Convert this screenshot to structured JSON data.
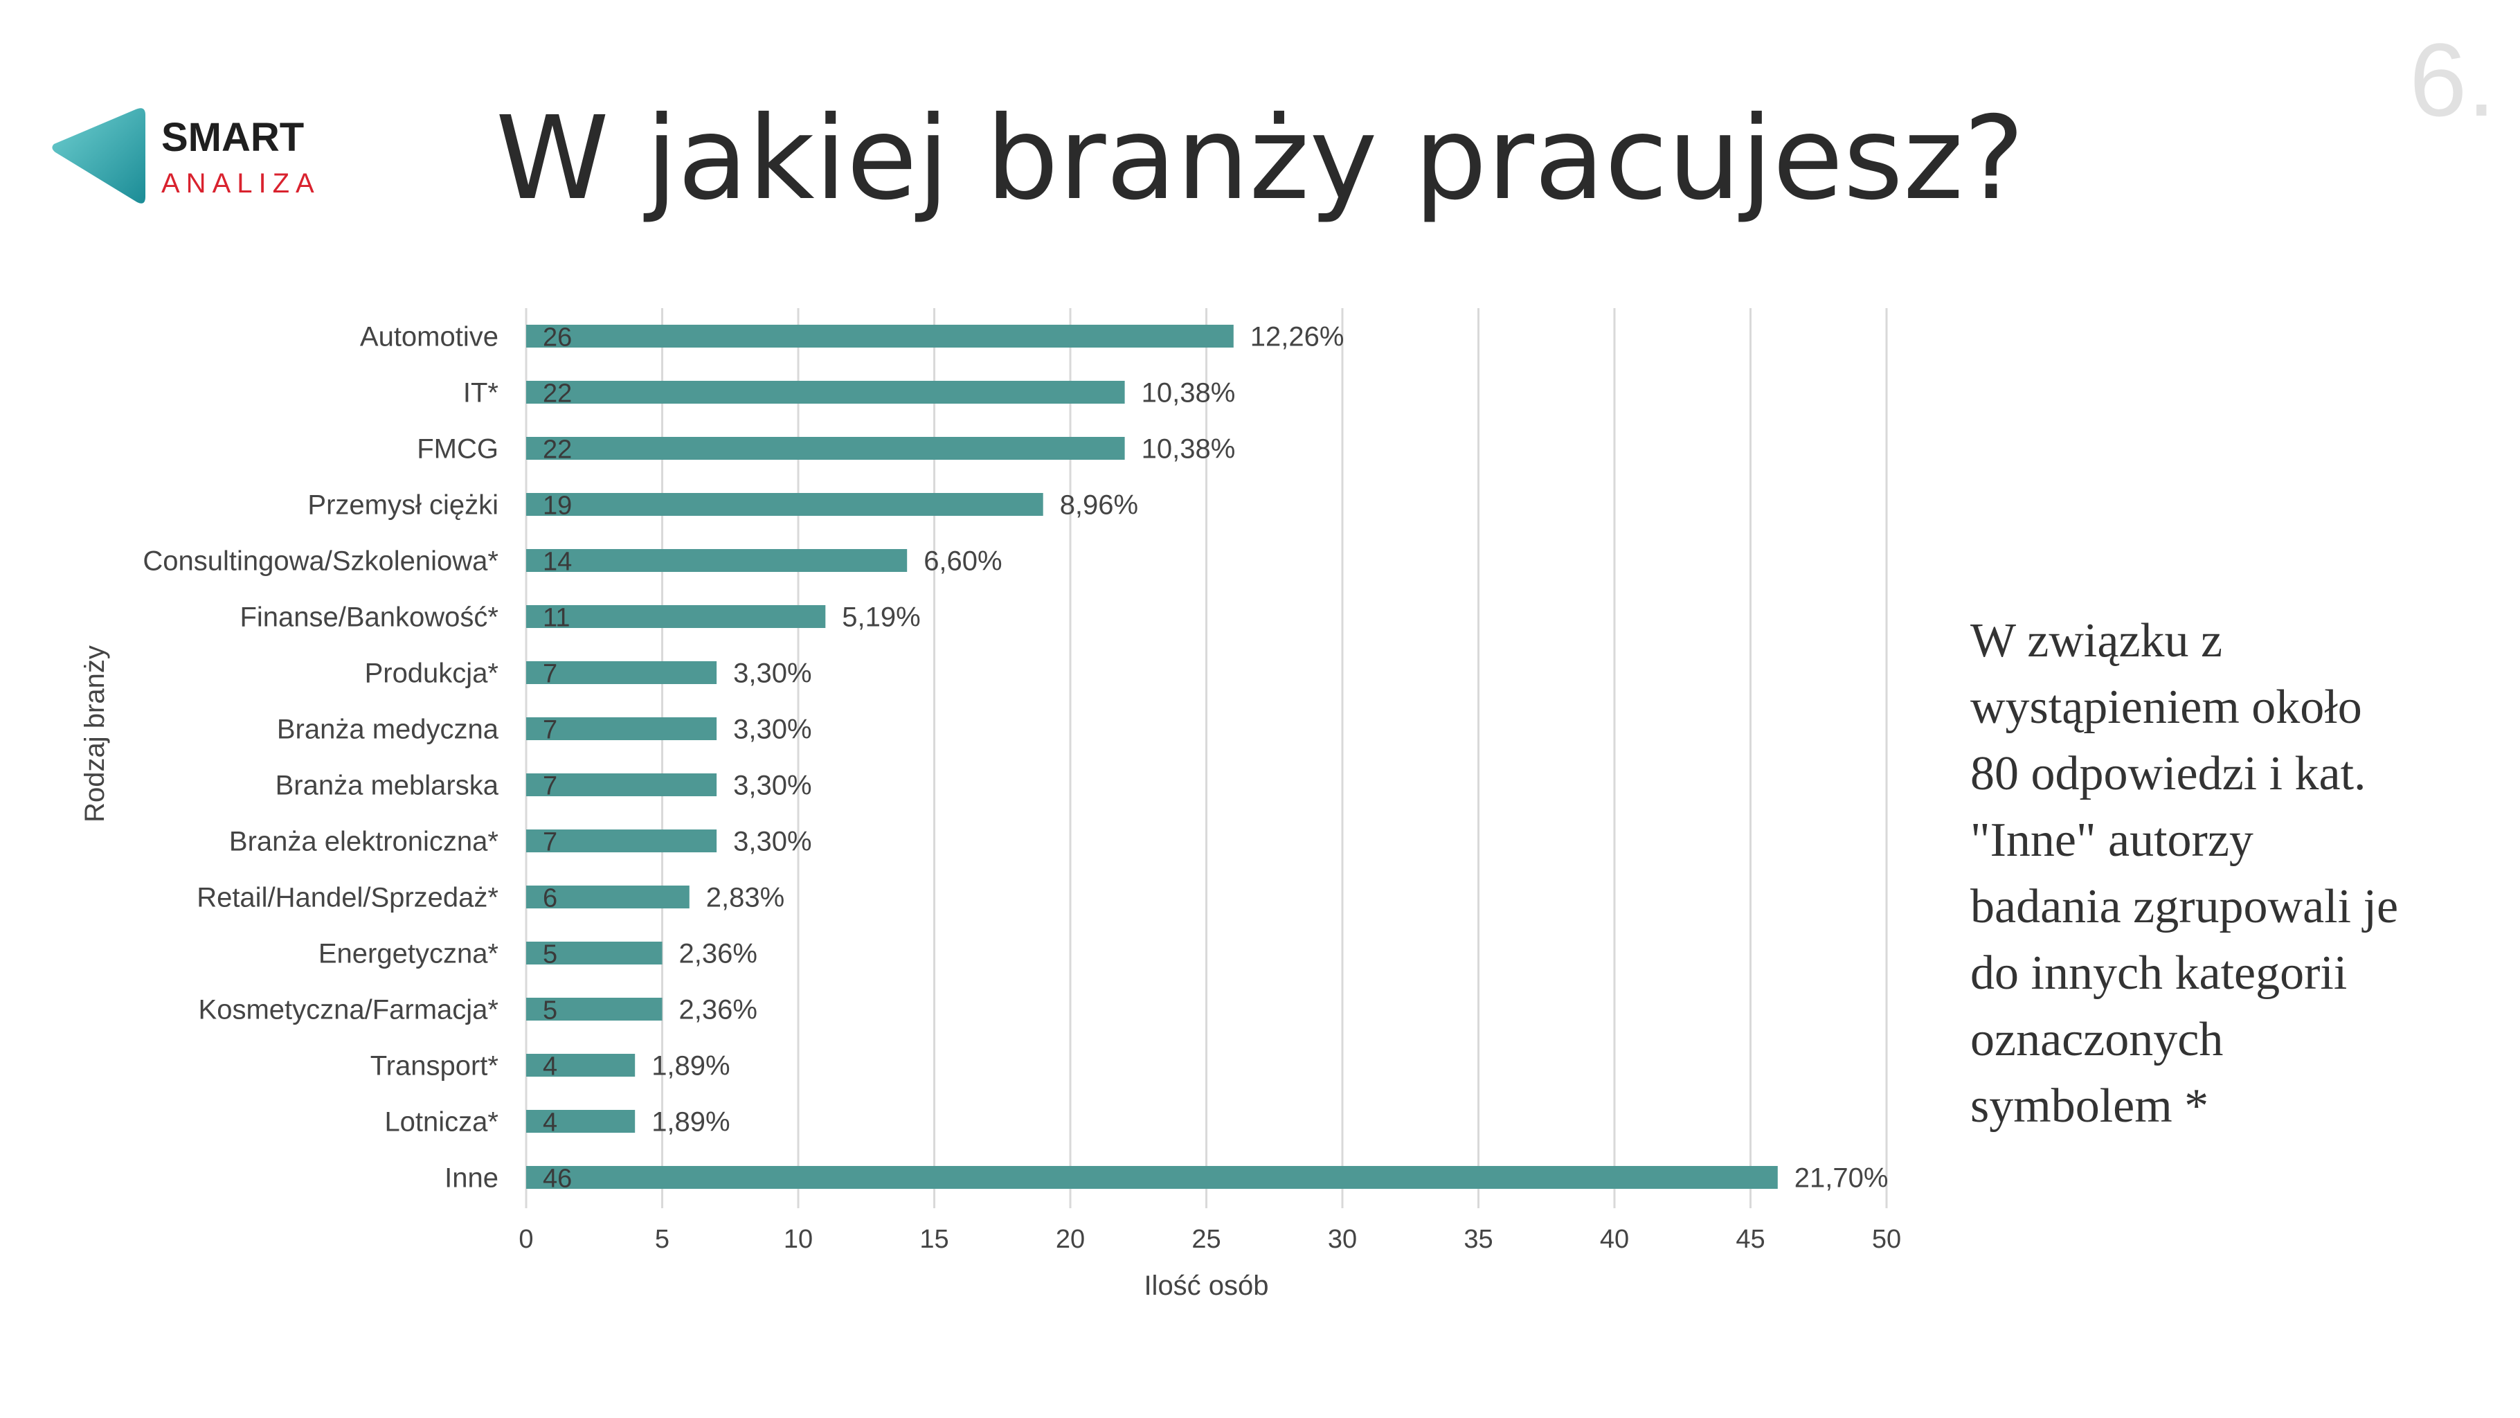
{
  "header": {
    "title": "W jakiej branży pracujesz?",
    "page_number": "6."
  },
  "logo": {
    "word1": "SMART",
    "word2": "ANALIZA",
    "colors": {
      "word1": "#1f1f1f",
      "word2": "#d9222e",
      "mark_light": "#6fcfd0",
      "mark_dark": "#1b8c96"
    }
  },
  "colors": {
    "bar": "#4e9894",
    "grid": "#d9d9d9",
    "text": "#444444"
  },
  "chart_data": {
    "type": "bar",
    "orientation": "horizontal",
    "xlabel": "Ilość osób",
    "ylabel": "Rodzaj branży",
    "xlim": [
      0,
      50
    ],
    "xticks": [
      "0",
      "5",
      "10",
      "15",
      "20",
      "25",
      "30",
      "35",
      "40",
      "45",
      "50"
    ],
    "grid": "vertical",
    "legend": "none",
    "categories": [
      "Automotive",
      "IT*",
      "FMCG",
      "Przemysł ciężki",
      "Consultingowa/Szkoleniowa*",
      "Finanse/Bankowość*",
      "Produkcja*",
      "Branża medyczna",
      "Branża meblarska",
      "Branża elektroniczna*",
      "Retail/Handel/Sprzedaż*",
      "Energetyczna*",
      "Kosmetyczna/Farmacja*",
      "Transport*",
      "Lotnicza*",
      "Inne"
    ],
    "values": [
      26,
      22,
      22,
      19,
      14,
      11,
      7,
      7,
      7,
      7,
      6,
      5,
      5,
      4,
      4,
      46
    ],
    "percent_labels": [
      "12,26%",
      "10,38%",
      "10,38%",
      "8,96%",
      "6,60%",
      "5,19%",
      "3,30%",
      "3,30%",
      "3,30%",
      "3,30%",
      "2,83%",
      "2,36%",
      "2,36%",
      "1,89%",
      "1,89%",
      "21,70%"
    ]
  },
  "note": {
    "lines": [
      "W związku z",
      "wystąpieniem około",
      "80 odpowiedzi i kat.",
      "\"Inne\" autorzy",
      "badania zgrupowali je",
      "do innych kategorii",
      "oznaczonych",
      "symbolem *"
    ]
  }
}
